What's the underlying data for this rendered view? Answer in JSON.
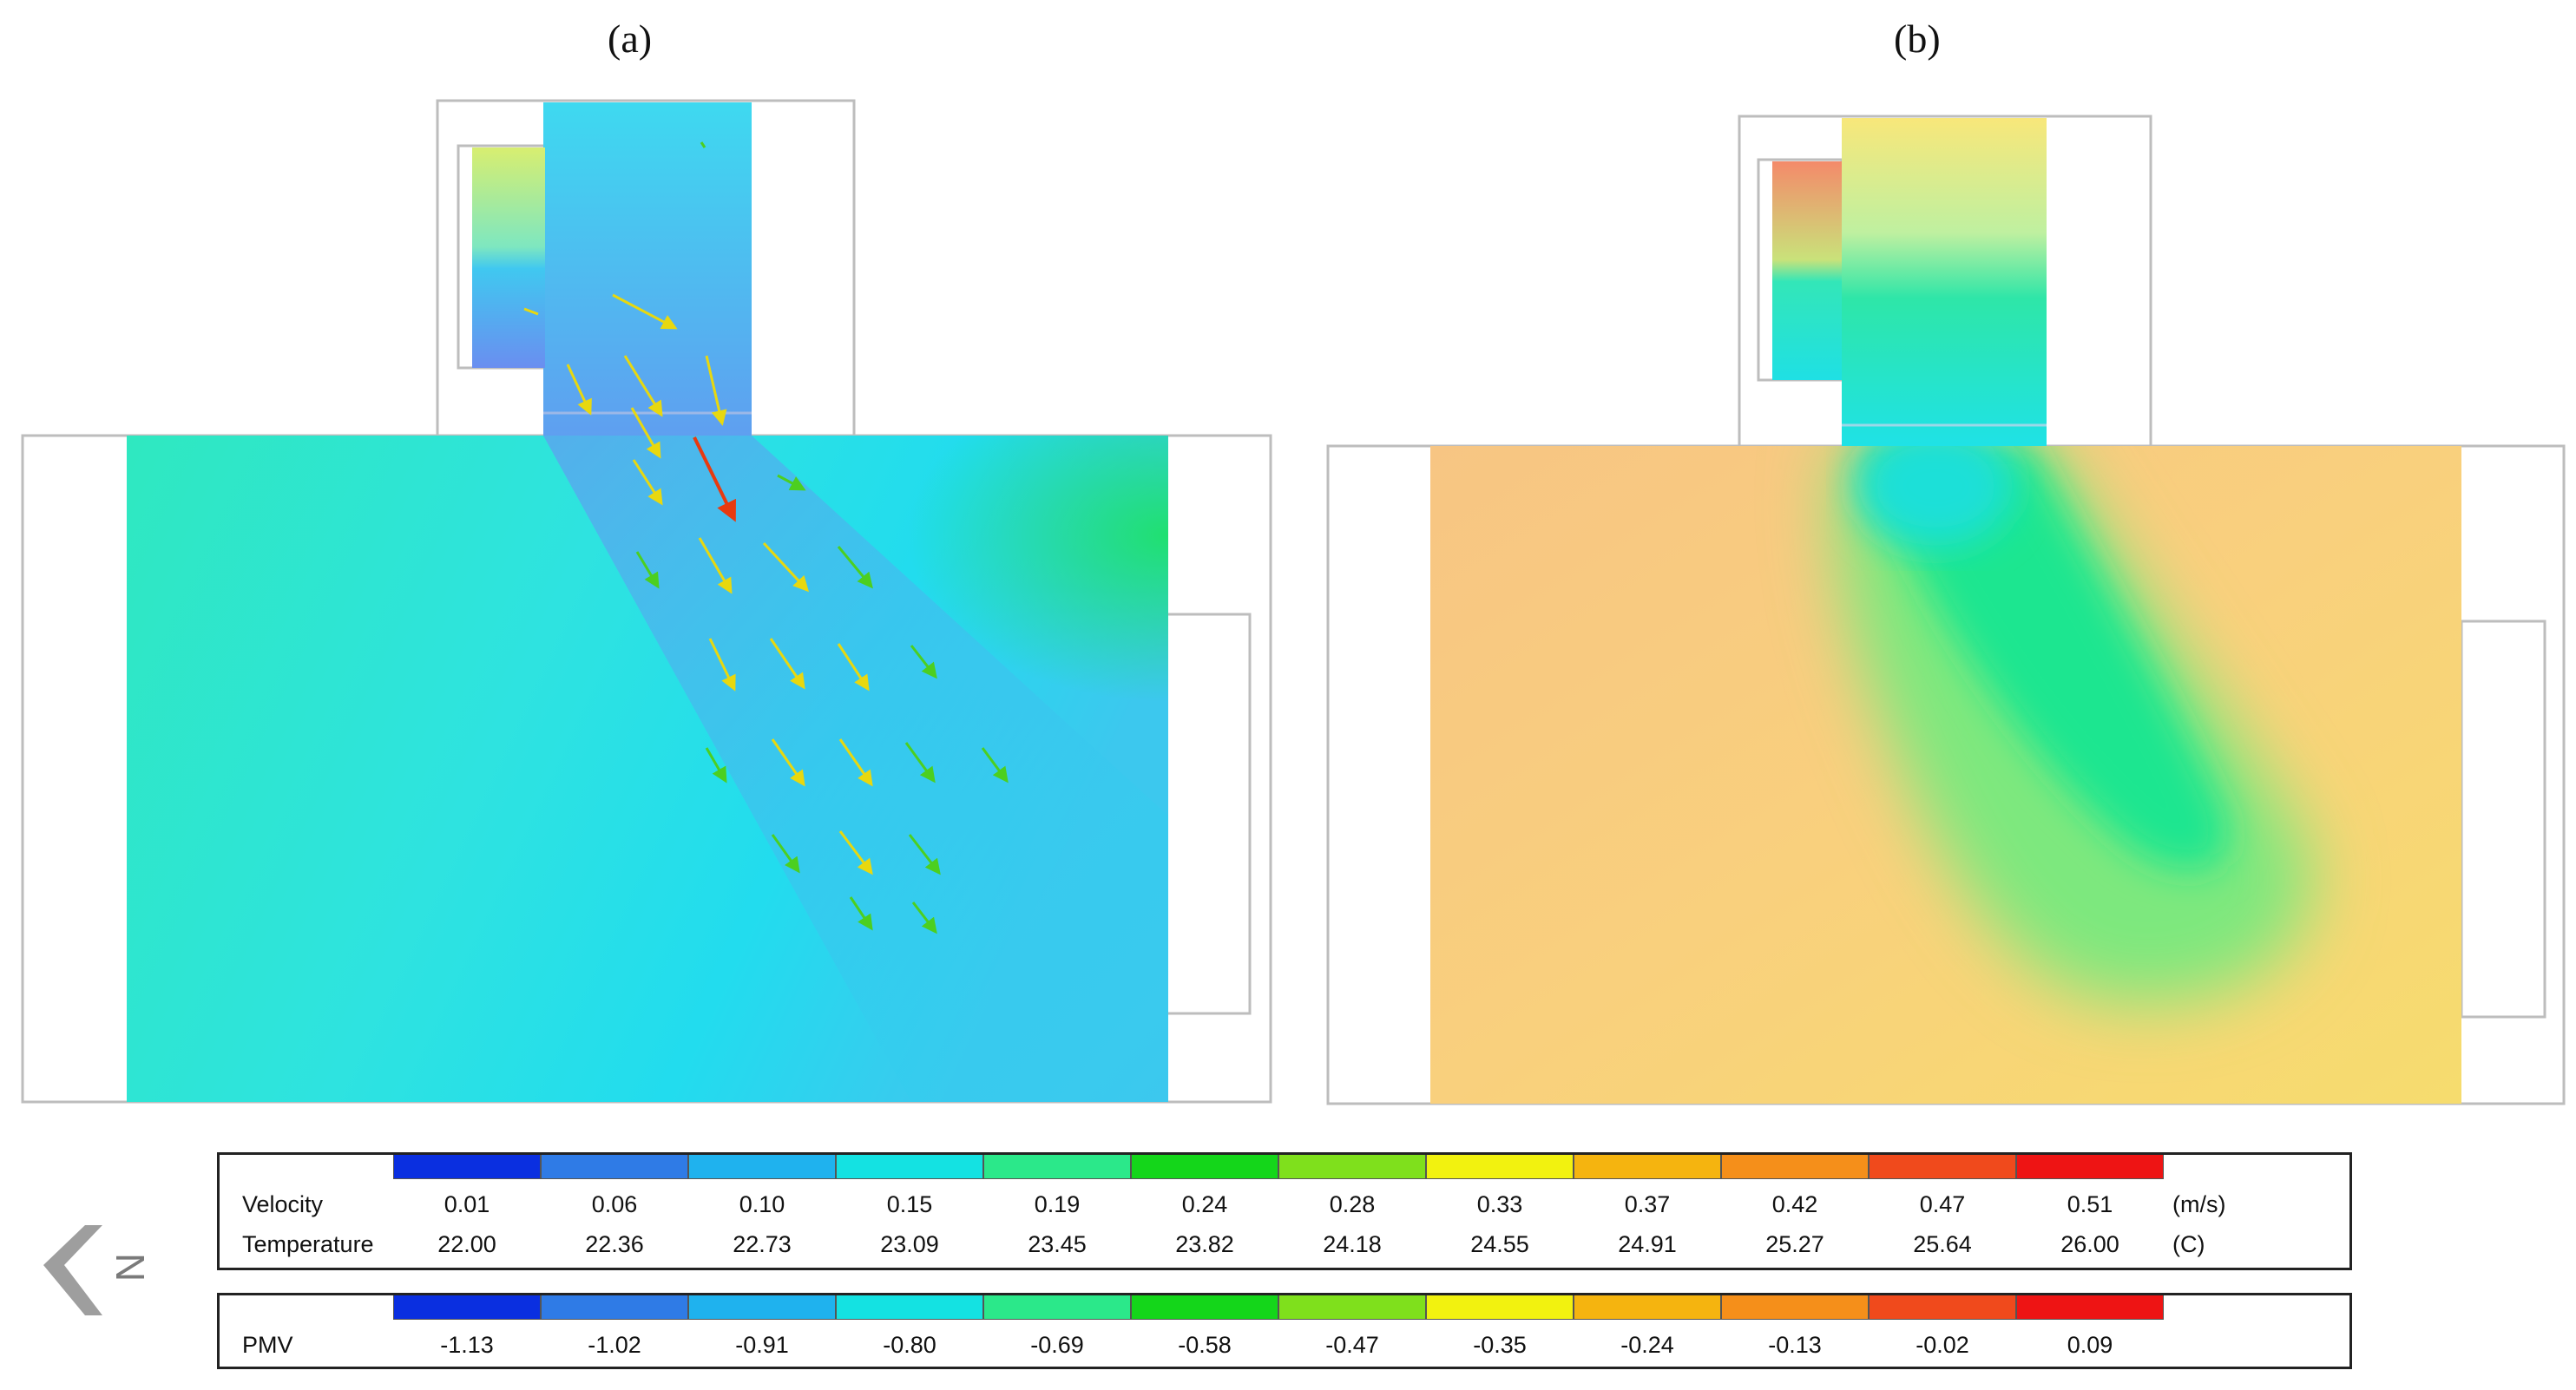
{
  "captions": {
    "a": "(a)",
    "b": "(b)"
  },
  "colors": {
    "scale": [
      "#0a2fe0",
      "#2f7be6",
      "#1fb2ee",
      "#14e2e2",
      "#2be88a",
      "#14d61a",
      "#7fe01c",
      "#f2f20f",
      "#f5b40f",
      "#f58f1a",
      "#f04a1c",
      "#ee1414"
    ],
    "panel_a_base": "#33e6dd",
    "panel_b_base": "#f8cd7f",
    "outline": "#bdbdbd",
    "compass": "#9e9e9e"
  },
  "legend_velocity_temperature": {
    "velocity_label": "Velocity",
    "temperature_label": "Temperature",
    "velocity_values": [
      "0.01",
      "0.06",
      "0.10",
      "0.15",
      "0.19",
      "0.24",
      "0.28",
      "0.33",
      "0.37",
      "0.42",
      "0.47",
      "0.51"
    ],
    "temperature_values": [
      "22.00",
      "22.36",
      "22.73",
      "23.09",
      "23.45",
      "23.82",
      "24.18",
      "24.55",
      "24.91",
      "25.27",
      "25.64",
      "26.00"
    ],
    "velocity_unit": "(m/s)",
    "temperature_unit": "(C)"
  },
  "legend_pmv": {
    "label": "PMV",
    "values": [
      "-1.13",
      "-1.02",
      "-0.91",
      "-0.80",
      "-0.69",
      "-0.58",
      "-0.47",
      "-0.35",
      "-0.24",
      "-0.13",
      "-0.02",
      "0.09"
    ]
  },
  "compass": {
    "direction_label": "N"
  }
}
